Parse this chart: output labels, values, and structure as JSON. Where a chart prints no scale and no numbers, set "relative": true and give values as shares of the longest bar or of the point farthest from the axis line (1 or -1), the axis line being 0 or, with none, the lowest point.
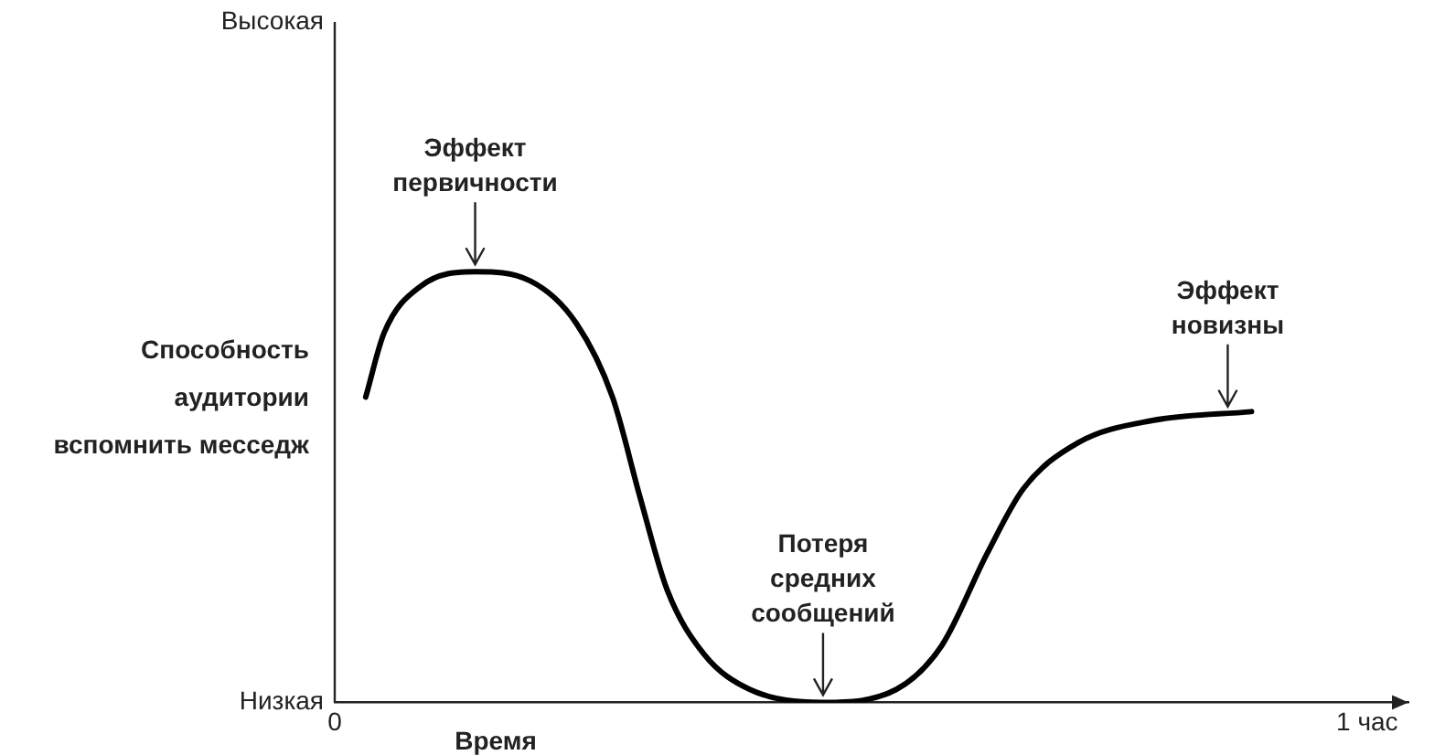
{
  "chart_data": {
    "type": "line",
    "relative": true,
    "xlabel": "Время",
    "ylabel": "Способность аудитории вспомнить месседж",
    "color": "#000000",
    "xlim": [
      0,
      1.04
    ],
    "xticks": [
      0,
      {
        "value": 1,
        "label": "1 час"
      }
    ],
    "grid": false,
    "legend": false,
    "marker": "none",
    "line_style": "solid",
    "x": [
      0.03,
      0.048,
      0.083,
      0.136,
      0.189,
      0.234,
      0.269,
      0.296,
      0.322,
      0.358,
      0.402,
      0.473,
      0.544,
      0.588,
      0.632,
      0.667,
      0.72,
      0.791,
      0.888
    ],
    "values": [
      0.709,
      0.859,
      0.966,
      1,
      0.979,
      0.88,
      0.709,
      0.474,
      0.261,
      0.111,
      0.03,
      0,
      0.03,
      0.132,
      0.346,
      0.496,
      0.603,
      0.654,
      0.675
    ],
    "annotations": [
      "Высокая",
      "Низкая",
      {
        "text": "Эффект первичности",
        "x": 0.136,
        "y": 1
      },
      {
        "text": "Потеря средних сообщений",
        "x": 0.473,
        "y": 0
      },
      {
        "text": "Эффект новизны",
        "x": 0.865,
        "y": 0.67
      }
    ]
  }
}
